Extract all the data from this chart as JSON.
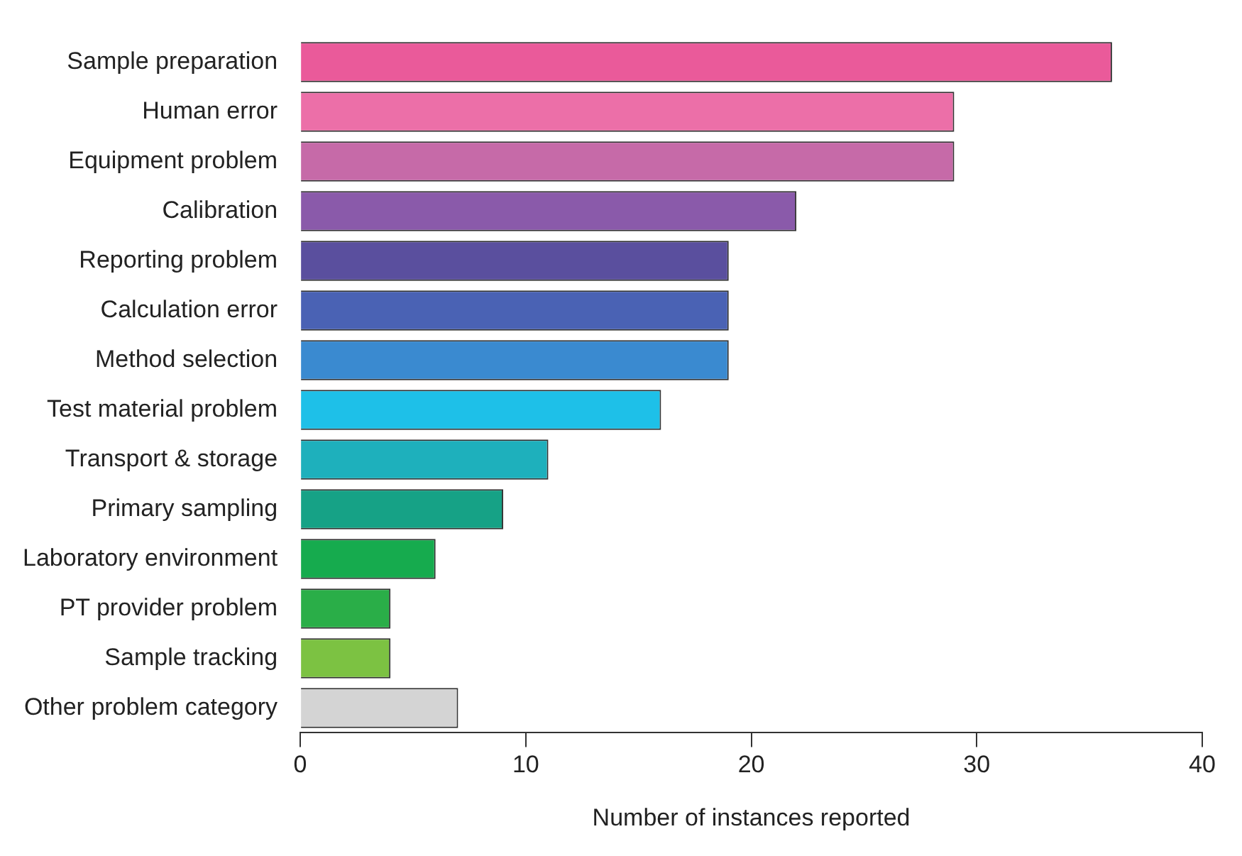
{
  "chart_data": {
    "type": "bar",
    "orientation": "horizontal",
    "xlabel": "Number of instances reported",
    "categories": [
      "Sample preparation",
      "Human error",
      "Equipment problem",
      "Calibration",
      "Reporting problem",
      "Calculation error",
      "Method selection",
      "Test material problem",
      "Transport & storage",
      "Primary sampling",
      "Laboratory environment",
      "PT provider problem",
      "Sample tracking",
      "Other problem category"
    ],
    "values": [
      36,
      29,
      29,
      22,
      19,
      19,
      19,
      16,
      11,
      9,
      6,
      4,
      4,
      7
    ],
    "colors": [
      "#ea5a9a",
      "#ec6fa8",
      "#c66aa8",
      "#8a5aaa",
      "#5a4f9e",
      "#4a62b4",
      "#3a8ad0",
      "#1ec0e8",
      "#1eb0bc",
      "#16a286",
      "#16ab4e",
      "#2aae48",
      "#7cc242",
      "#d4d4d4"
    ],
    "xlim": [
      0,
      40
    ],
    "xticks": [
      0,
      10,
      20,
      30,
      40
    ],
    "grid": false,
    "legend": false
  }
}
